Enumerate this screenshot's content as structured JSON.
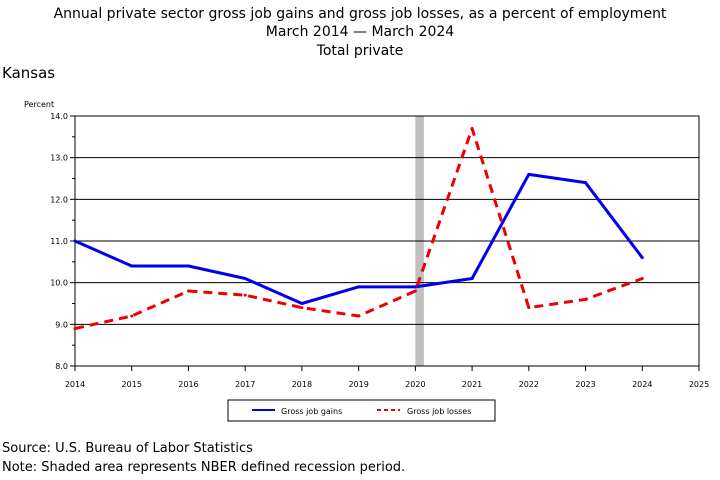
{
  "chart_data": {
    "type": "line",
    "title": "Annual private sector gross job gains and gross job losses, as a percent of employment",
    "subtitle": "March 2014 — March 2024",
    "subtitle2": "Total private",
    "region": "Kansas",
    "ylabel": "Percent",
    "xlabel": "",
    "ylim": [
      8.0,
      14.0
    ],
    "xlim": [
      2014,
      2025
    ],
    "yticks": [
      "8.0",
      "9.0",
      "10.0",
      "11.0",
      "12.0",
      "13.0",
      "14.0"
    ],
    "xticks": [
      "2014",
      "2015",
      "2016",
      "2017",
      "2018",
      "2019",
      "2020",
      "2021",
      "2022",
      "2023",
      "2024",
      "2025"
    ],
    "grid": true,
    "recession": {
      "start": 2020.0,
      "end": 2020.15
    },
    "legend_position": "bottom-center",
    "series": [
      {
        "name": "Gross job gains",
        "color": "#0000ee",
        "style": "solid",
        "x": [
          2014,
          2015,
          2016,
          2017,
          2018,
          2019,
          2020,
          2021,
          2022,
          2023,
          2024
        ],
        "values": [
          11.0,
          10.4,
          10.4,
          10.1,
          9.5,
          9.9,
          9.9,
          10.1,
          12.6,
          12.4,
          10.6
        ]
      },
      {
        "name": "Gross job losses",
        "color": "#ee0000",
        "style": "dashed",
        "x": [
          2014,
          2015,
          2016,
          2017,
          2018,
          2019,
          2020,
          2021,
          2022,
          2023,
          2024
        ],
        "values": [
          8.9,
          9.2,
          9.8,
          9.7,
          9.4,
          9.2,
          9.8,
          13.7,
          9.4,
          9.6,
          10.1
        ]
      }
    ]
  },
  "footer": {
    "source": "Source: U.S. Bureau of Labor Statistics",
    "note": "Note: Shaded area represents NBER defined recession period."
  }
}
